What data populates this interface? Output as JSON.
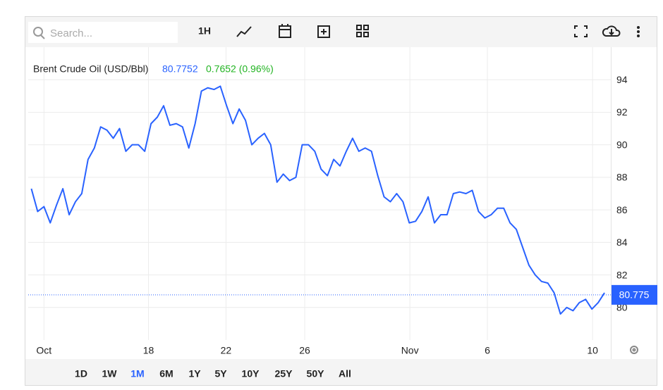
{
  "toolbar": {
    "search_placeholder": "Search...",
    "interval": "1H"
  },
  "ranges": {
    "items": [
      "1D",
      "1W",
      "1M",
      "6M",
      "1Y",
      "5Y",
      "10Y",
      "25Y",
      "50Y",
      "All"
    ],
    "active": "1M"
  },
  "chart_data": {
    "type": "line",
    "title": "Brent Crude Oil (USD/Bbl)",
    "last": "80.7752",
    "change": "0.7652 (0.96%)",
    "last_tag": 80.775,
    "x": [
      0,
      1,
      2,
      3,
      4,
      5,
      6,
      7,
      8,
      9,
      10,
      11,
      12,
      13,
      14,
      15,
      16,
      17,
      18,
      19,
      20,
      21,
      22,
      23,
      24,
      25,
      26,
      27,
      28,
      29,
      30,
      31,
      32,
      33,
      34,
      35,
      36,
      37,
      38,
      39,
      40,
      41,
      42,
      43,
      44,
      45,
      46,
      47,
      48,
      49,
      50,
      51,
      52,
      53,
      54,
      55,
      56,
      57,
      58,
      59,
      60,
      61,
      62,
      63,
      64,
      65,
      66,
      67,
      68,
      69,
      70,
      71,
      72,
      73,
      74,
      75,
      76,
      77,
      78,
      79,
      80,
      81,
      82,
      83,
      84,
      85,
      86,
      87,
      88,
      89,
      90,
      91
    ],
    "series": [
      {
        "name": "Brent Crude Oil (USD/Bbl)",
        "color": "#2962ff",
        "values": [
          87.3,
          85.9,
          86.2,
          85.2,
          86.3,
          87.3,
          85.7,
          86.5,
          87.0,
          89.1,
          89.8,
          91.1,
          90.9,
          90.4,
          91.0,
          89.6,
          90.0,
          90.0,
          89.6,
          91.3,
          91.7,
          92.4,
          91.2,
          91.3,
          91.1,
          89.8,
          91.3,
          93.3,
          93.5,
          93.4,
          93.6,
          92.4,
          91.3,
          92.2,
          91.5,
          90.0,
          90.4,
          90.7,
          90.0,
          87.7,
          88.2,
          87.8,
          88.0,
          90.0,
          90.0,
          89.6,
          88.5,
          88.1,
          89.1,
          88.7,
          89.6,
          90.4,
          89.6,
          89.8,
          89.6,
          88.1,
          86.8,
          86.5,
          87.0,
          86.5,
          85.2,
          85.3,
          85.9,
          86.8,
          85.2,
          85.7,
          85.7,
          87.0,
          87.1,
          87.0,
          87.2,
          85.9,
          85.5,
          85.7,
          86.1,
          86.1,
          85.2,
          84.8,
          83.7,
          82.6,
          82.0,
          81.6,
          81.5,
          80.9,
          79.6,
          80.0,
          79.8,
          80.3,
          80.5,
          79.9,
          80.3,
          80.9
        ]
      }
    ],
    "xlim": [
      -0.5,
      92
    ],
    "xticks": [
      {
        "value": 2.0,
        "label": "Oct"
      },
      {
        "value": 18.6,
        "label": "18"
      },
      {
        "value": 30.9,
        "label": "22"
      },
      {
        "value": 43.4,
        "label": "26"
      },
      {
        "value": 60.1,
        "label": "Nov"
      },
      {
        "value": 72.4,
        "label": "6"
      },
      {
        "value": 89.1,
        "label": "10"
      }
    ],
    "ylim": [
      78,
      96
    ],
    "yticks": [
      80,
      82,
      84,
      86,
      88,
      90,
      92,
      94
    ],
    "grid": true
  }
}
